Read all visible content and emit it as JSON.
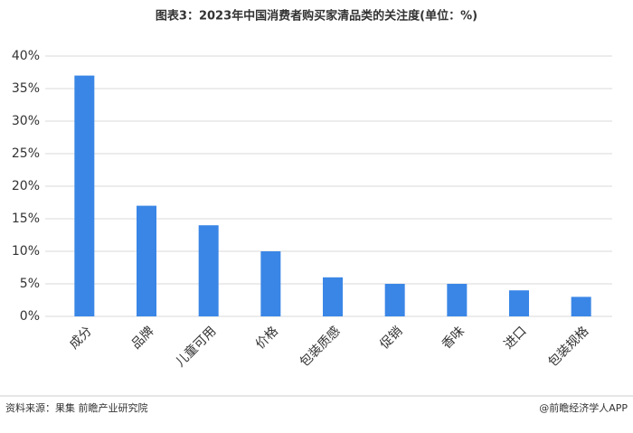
{
  "chart_data": {
    "type": "bar",
    "title": "图表3：2023年中国消费者购买家清品类的关注度(单位：%)",
    "categories": [
      "成分",
      "品牌",
      "儿童可用",
      "价格",
      "包装质感",
      "促销",
      "香味",
      "进口",
      "包装规格"
    ],
    "values": [
      37,
      17,
      14,
      10,
      6,
      5,
      5,
      4,
      3
    ],
    "color": "#3a86e6",
    "ylim": [
      0,
      40
    ],
    "yticks": [
      {
        "value": 0,
        "label": "0%"
      },
      {
        "value": 5,
        "label": "5%"
      },
      {
        "value": 10,
        "label": "10%"
      },
      {
        "value": 15,
        "label": "15%"
      },
      {
        "value": 20,
        "label": "20%"
      },
      {
        "value": 25,
        "label": "25%"
      },
      {
        "value": 30,
        "label": "30%"
      },
      {
        "value": 35,
        "label": "35%"
      },
      {
        "value": 40,
        "label": "40%"
      }
    ],
    "grid": true,
    "source": "资料来源：果集 前瞻产业研究院",
    "credit": "@前瞻经济学人APP"
  }
}
